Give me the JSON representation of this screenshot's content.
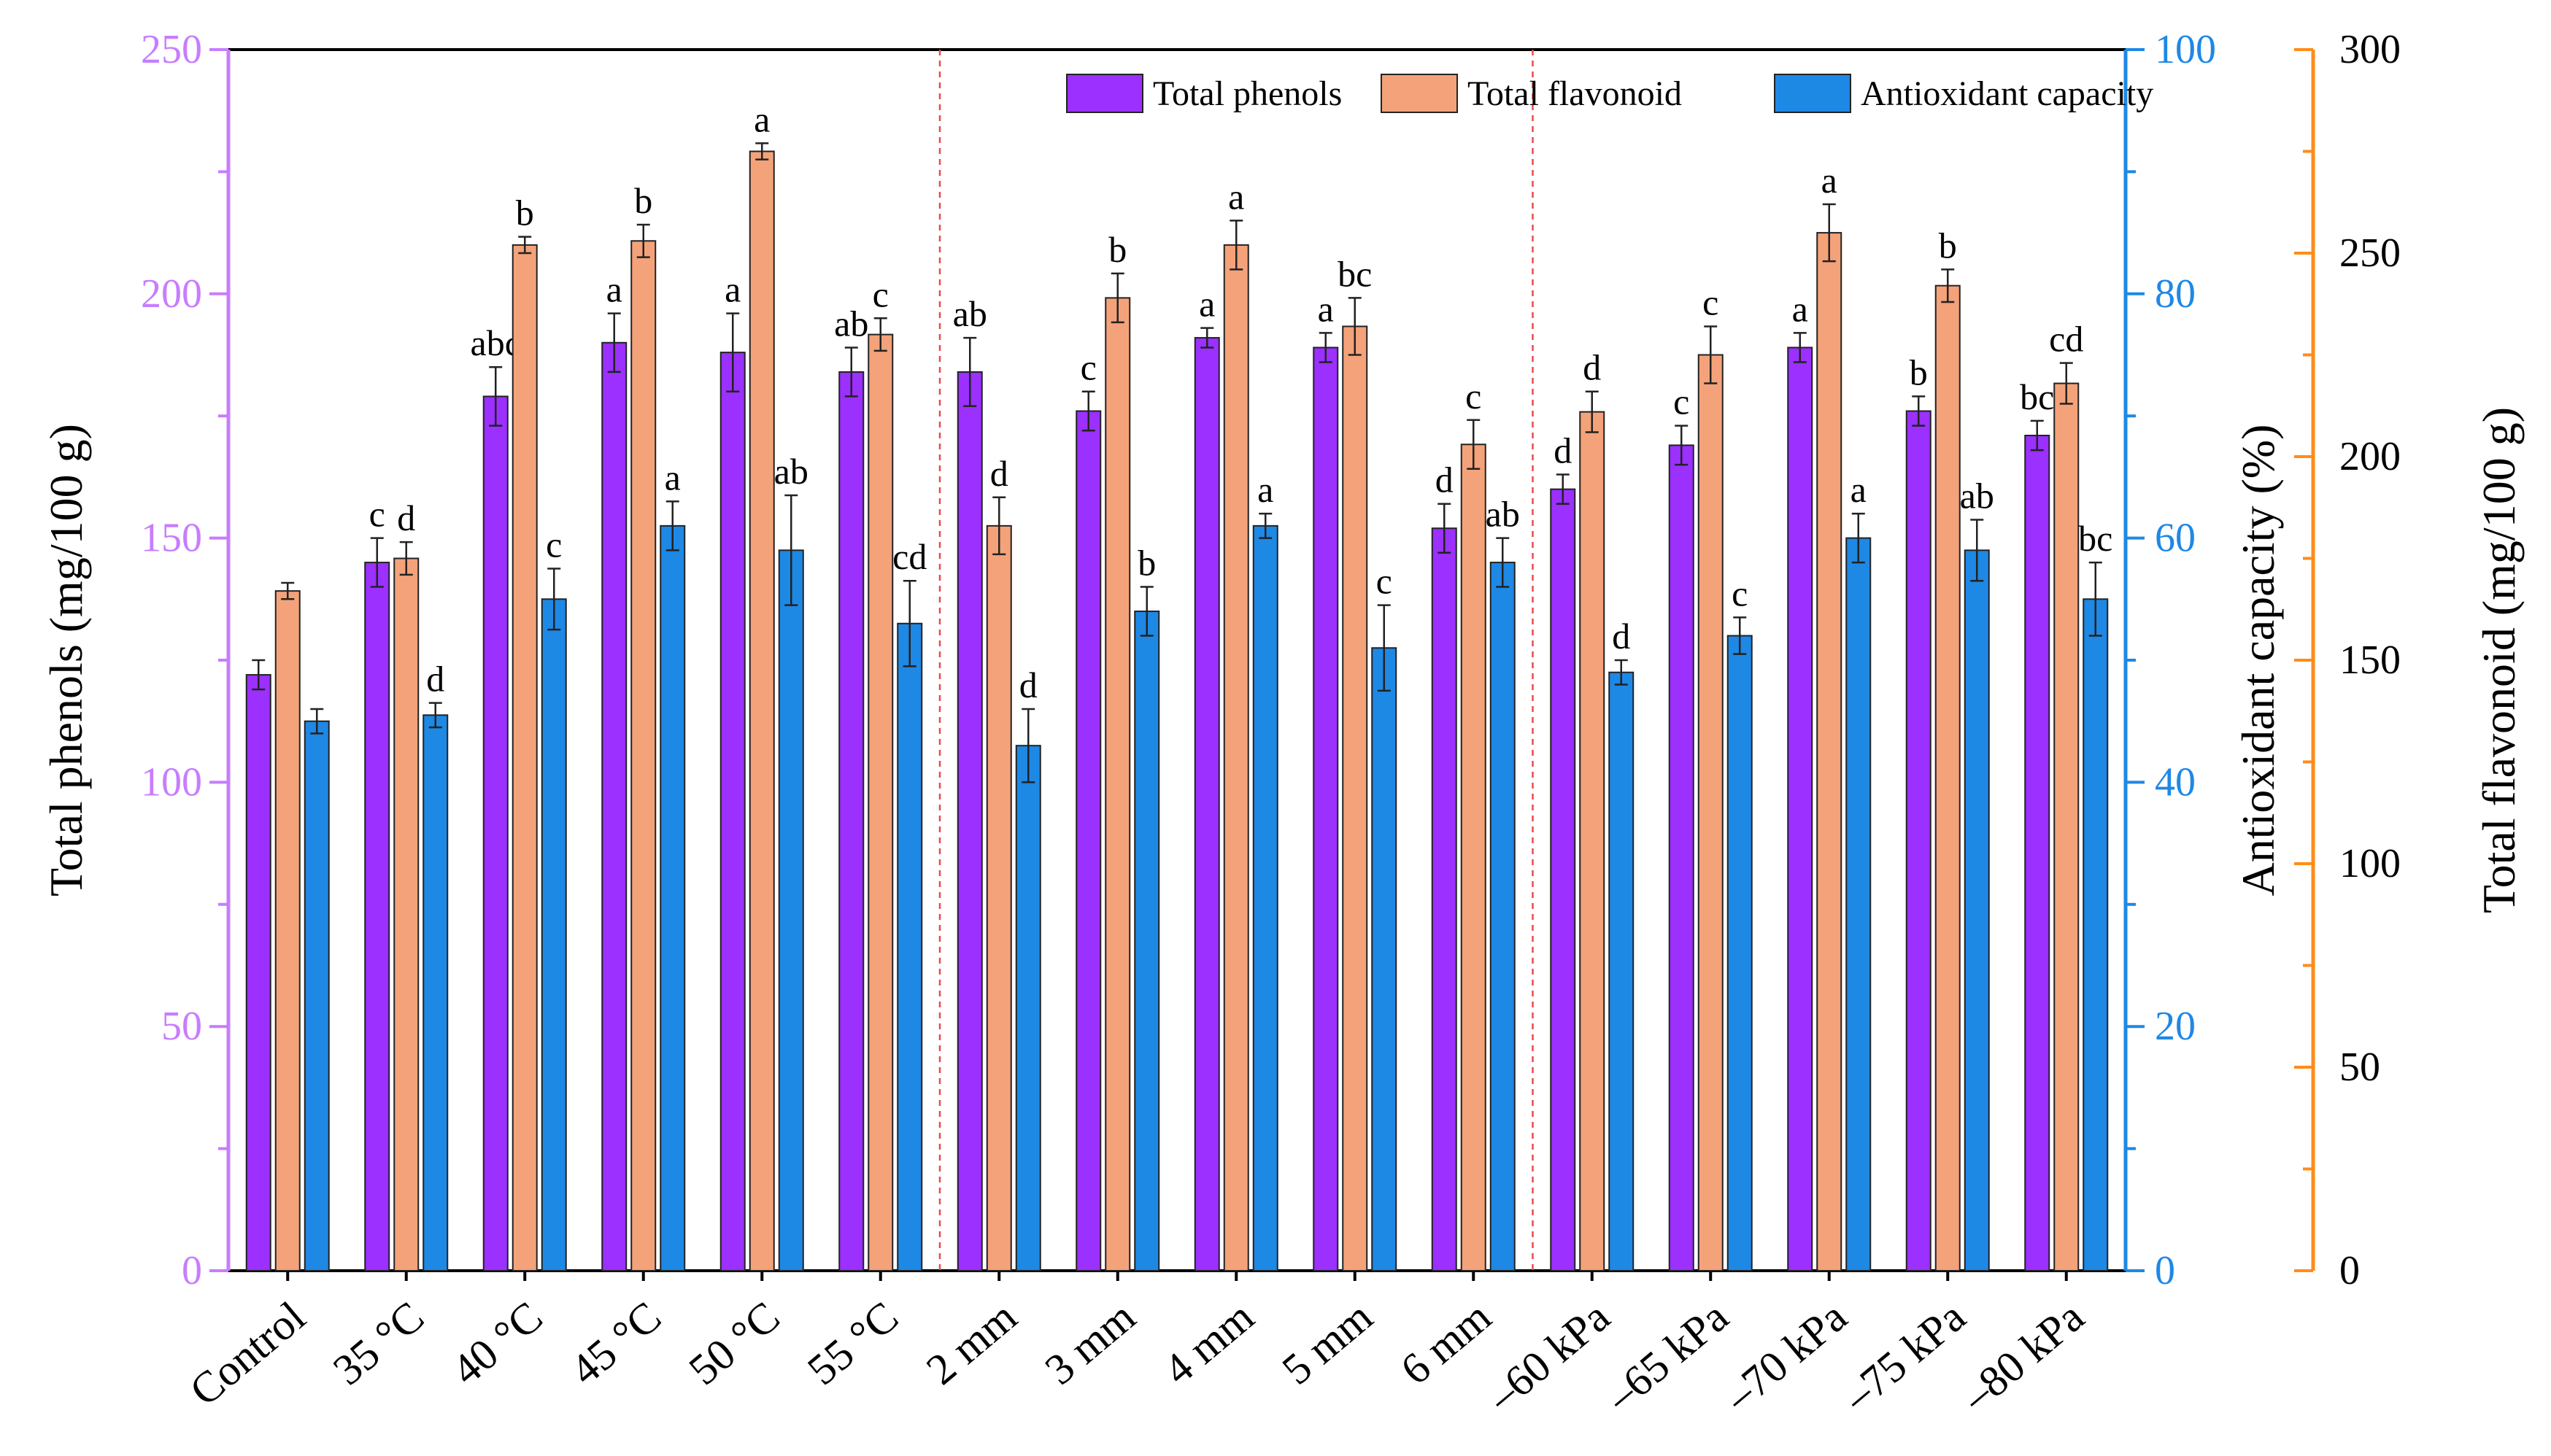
{
  "chart_data": {
    "type": "bar",
    "categories": [
      "Control",
      "35 °C",
      "40 °C",
      "45 °C",
      "50 °C",
      "55 °C",
      "2 mm",
      "3 mm",
      "4 mm",
      "5 mm",
      "6 mm",
      "–60 kPa",
      "–65 kPa",
      "–70 kPa",
      "–75 kPa",
      "–80 kPa"
    ],
    "series": [
      {
        "name": "Total phenols",
        "axis": "left",
        "color": "#9b30ff",
        "values": [
          122,
          145,
          179,
          190,
          188,
          184,
          184,
          176,
          191,
          189,
          152,
          160,
          169,
          189,
          176,
          171
        ],
        "errors": [
          3,
          5,
          6,
          6,
          8,
          5,
          7,
          4,
          2,
          3,
          5,
          3,
          4,
          3,
          3,
          3
        ],
        "letters": [
          "",
          "c",
          "abc",
          "a",
          "a",
          "ab",
          "ab",
          "c",
          "a",
          "a",
          "d",
          "d",
          "c",
          "a",
          "b",
          "bc"
        ]
      },
      {
        "name": "Total flavonoid",
        "axis": "right2",
        "color": "#f4a27a",
        "values": [
          167,
          175,
          252,
          253,
          275,
          230,
          183,
          239,
          252,
          232,
          203,
          211,
          225,
          255,
          242,
          218
        ],
        "errors": [
          2,
          4,
          2,
          4,
          2,
          4,
          7,
          6,
          6,
          7,
          6,
          5,
          7,
          7,
          4,
          5
        ],
        "letters": [
          "",
          "d",
          "b",
          "b",
          "a",
          "c",
          "d",
          "b",
          "a",
          "bc",
          "c",
          "d",
          "c",
          "a",
          "b",
          "cd"
        ]
      },
      {
        "name": "Antioxidant capacity",
        "axis": "right",
        "color": "#1e88e5",
        "values": [
          45,
          45.5,
          55,
          61,
          59,
          53,
          43,
          54,
          61,
          51,
          58,
          49,
          52,
          60,
          59,
          55
        ],
        "errors": [
          1,
          1,
          2.5,
          2,
          4.5,
          3.5,
          3,
          2,
          1,
          3.5,
          2,
          1,
          1.5,
          2,
          2.5,
          3
        ],
        "letters": [
          "",
          "d",
          "c",
          "a",
          "ab",
          "cd",
          "d",
          "b",
          "a",
          "c",
          "ab",
          "d",
          "c",
          "a",
          "ab",
          "bc"
        ]
      }
    ],
    "axes": {
      "left": {
        "label": "Total phenols (mg/100 g)",
        "min": 0,
        "max": 250,
        "ticks": [
          0,
          50,
          100,
          150,
          200,
          250
        ],
        "color": "#c77dff"
      },
      "right": {
        "label": "Antioxidant capacity (%)",
        "min": 0,
        "max": 100,
        "ticks": [
          0,
          20,
          40,
          60,
          80,
          100
        ],
        "color": "#1e88e5"
      },
      "right2": {
        "label": "Total flavonoid (mg/100 g)",
        "min": 0,
        "max": 300,
        "ticks": [
          0,
          50,
          100,
          150,
          200,
          250,
          300
        ],
        "color": "#ff8c1a"
      }
    },
    "group_dividers_after": [
      5,
      10
    ],
    "legend_position": "top-right",
    "grid": false
  }
}
